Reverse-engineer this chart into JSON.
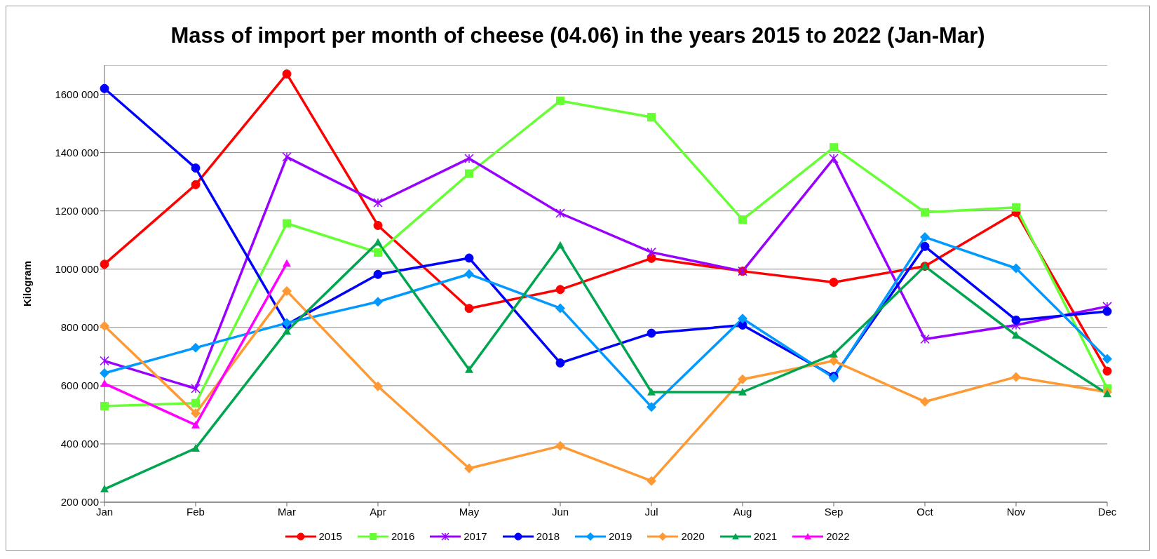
{
  "chart_data": {
    "type": "line",
    "title": "Mass of import per month of cheese (04.06) in the years 2015 to 2022 (Jan-Mar)",
    "ylabel": "Kilogram",
    "categories": [
      "Jan",
      "Feb",
      "Mar",
      "Apr",
      "May",
      "Jun",
      "Jul",
      "Aug",
      "Sep",
      "Oct",
      "Nov",
      "Dec"
    ],
    "ylim": [
      200000,
      1700000
    ],
    "yticks": [
      {
        "value": 200000,
        "label": "200 000"
      },
      {
        "value": 400000,
        "label": "400 000"
      },
      {
        "value": 600000,
        "label": "600 000"
      },
      {
        "value": 800000,
        "label": "800 000"
      },
      {
        "value": 1000000,
        "label": "1000 000"
      },
      {
        "value": 1200000,
        "label": "1200 000"
      },
      {
        "value": 1400000,
        "label": "1400 000"
      },
      {
        "value": 1600000,
        "label": "1600 000"
      }
    ],
    "grid": "y",
    "legend": "bottom",
    "line_style": "solid",
    "series": [
      {
        "name": "2015",
        "color": "#ff0000",
        "marker": "circle",
        "values": [
          1017000,
          1290000,
          1670000,
          1150000,
          865000,
          930000,
          1037000,
          993000,
          955000,
          1010000,
          1195000,
          650000
        ]
      },
      {
        "name": "2016",
        "color": "#66ff33",
        "marker": "square",
        "values": [
          530000,
          540000,
          1157000,
          1057000,
          1328000,
          1578000,
          1522000,
          1170000,
          1418000,
          1195000,
          1212000,
          590000
        ]
      },
      {
        "name": "2017",
        "color": "#9900ff",
        "marker": "cross",
        "values": [
          685000,
          590000,
          1385000,
          1228000,
          1380000,
          1192000,
          1058000,
          993000,
          1380000,
          760000,
          808000,
          872000
        ]
      },
      {
        "name": "2018",
        "color": "#0000ff",
        "marker": "circle",
        "values": [
          1620000,
          1347000,
          810000,
          982000,
          1038000,
          678000,
          780000,
          808000,
          632000,
          1078000,
          825000,
          855000
        ]
      },
      {
        "name": "2019",
        "color": "#0099ff",
        "marker": "diamond",
        "values": [
          643000,
          730000,
          815000,
          888000,
          983000,
          866000,
          527000,
          830000,
          627000,
          1110000,
          1003000,
          692000
        ]
      },
      {
        "name": "2020",
        "color": "#ff9933",
        "marker": "diamond",
        "values": [
          805000,
          505000,
          925000,
          598000,
          316000,
          393000,
          273000,
          622000,
          685000,
          545000,
          630000,
          578000
        ]
      },
      {
        "name": "2021",
        "color": "#00a550",
        "marker": "triangle",
        "values": [
          245000,
          385000,
          787000,
          1092000,
          655000,
          1082000,
          578000,
          578000,
          708000,
          1010000,
          773000,
          572000
        ]
      },
      {
        "name": "2022",
        "color": "#ff00ff",
        "marker": "triangle",
        "values": [
          607000,
          465000,
          1020000,
          null,
          null,
          null,
          null,
          null,
          null,
          null,
          null,
          null
        ]
      }
    ]
  }
}
